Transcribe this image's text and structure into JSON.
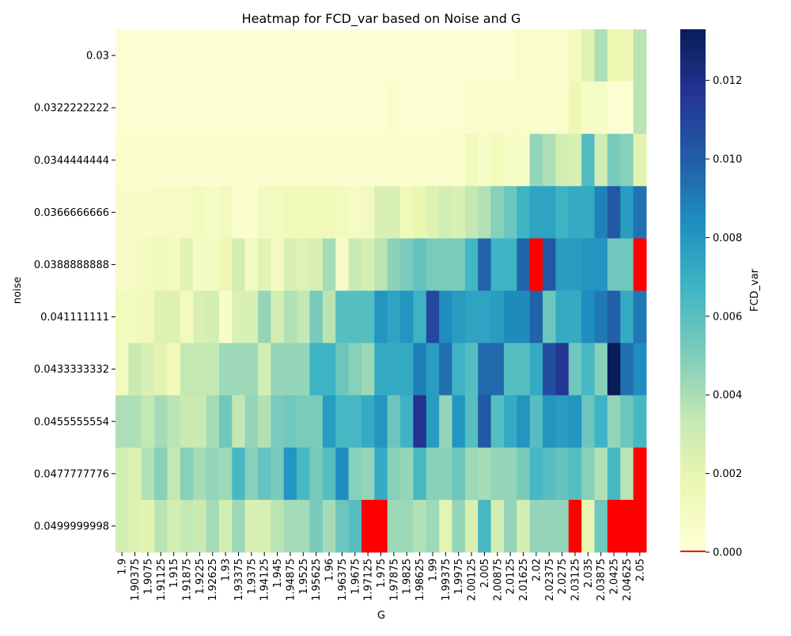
{
  "chart_data": {
    "type": "heatmap",
    "title": "Heatmap for FCD_var based on Noise and G",
    "xlabel": "G",
    "ylabel": "noise",
    "colorbar_label": "FCD_var",
    "colormap": "YlGnBu",
    "missing_color": "#ff0000",
    "value_range": [
      0,
      0.0133
    ],
    "colorbar_ticks": [
      "0.000",
      "0.002",
      "0.004",
      "0.006",
      "0.008",
      "0.010",
      "0.012"
    ],
    "x_categories": [
      "1.9",
      "1.90375",
      "1.9075",
      "1.91125",
      "1.915",
      "1.91875",
      "1.9225",
      "1.92625",
      "1.93",
      "1.93375",
      "1.9375",
      "1.94125",
      "1.945",
      "1.94875",
      "1.9525",
      "1.95625",
      "1.96",
      "1.96375",
      "1.9675",
      "1.97125",
      "1.975",
      "1.97875",
      "1.9825",
      "1.98625",
      "1.99",
      "1.99375",
      "1.9975",
      "2.00125",
      "2.005",
      "2.00875",
      "2.0125",
      "2.01625",
      "2.02",
      "2.02375",
      "2.0275",
      "2.03125",
      "2.035",
      "2.03875",
      "2.0425",
      "2.04625",
      "2.05"
    ],
    "y_categories": [
      "0.03",
      "0.0322222222",
      "0.0344444444",
      "0.0366666666",
      "0.0388888888",
      "0.041111111",
      "0.0433333332",
      "0.0455555554",
      "0.0477777776",
      "0.0499999998"
    ],
    "values": [
      [
        0.0003,
        0.0003,
        0.0003,
        0.0003,
        0.0003,
        0.0003,
        0.0003,
        0.0003,
        0.0003,
        0.0003,
        0.0003,
        0.0003,
        0.0003,
        0.0003,
        0.0003,
        0.0003,
        0.0003,
        0.0003,
        0.0003,
        0.0003,
        0.0003,
        0.0003,
        0.0003,
        0.0003,
        0.0003,
        0.0003,
        0.0003,
        0.0003,
        0.0003,
        0.0003,
        0.0003,
        0.0006,
        0.0006,
        0.0006,
        0.0006,
        0.0011,
        0.0022,
        0.0039,
        0.0016,
        0.0016,
        0.0036
      ],
      [
        0.0003,
        0.0003,
        0.0003,
        0.0003,
        0.0003,
        0.0003,
        0.0003,
        0.0003,
        0.0003,
        0.0003,
        0.0003,
        0.0003,
        0.0003,
        0.0003,
        0.0003,
        0.0003,
        0.0003,
        0.0003,
        0.0003,
        0.0003,
        0.0003,
        0.0006,
        0.0003,
        0.0003,
        0.0003,
        0.0003,
        0.0003,
        0.0006,
        0.0006,
        0.0006,
        0.0006,
        0.0006,
        0.0006,
        0.0006,
        0.0006,
        0.0016,
        0.0008,
        0.0008,
        0.0003,
        0.0003,
        0.0036
      ],
      [
        0.0005,
        0.0004,
        0.0004,
        0.0004,
        0.0004,
        0.0004,
        0.0004,
        0.0004,
        0.0004,
        0.0004,
        0.0004,
        0.0004,
        0.0004,
        0.0004,
        0.0004,
        0.0004,
        0.0004,
        0.0004,
        0.0004,
        0.0004,
        0.0004,
        0.0004,
        0.0004,
        0.0004,
        0.0004,
        0.0006,
        0.0006,
        0.0013,
        0.0008,
        0.0012,
        0.0008,
        0.0008,
        0.0045,
        0.0039,
        0.0028,
        0.0026,
        0.0062,
        0.0029,
        0.0052,
        0.0048,
        0.0021
      ],
      [
        0.0007,
        0.0007,
        0.0007,
        0.0009,
        0.0009,
        0.0009,
        0.0011,
        0.0008,
        0.0011,
        0.0005,
        0.0005,
        0.0011,
        0.0011,
        0.0014,
        0.0014,
        0.0014,
        0.0014,
        0.0011,
        0.0009,
        0.0011,
        0.0026,
        0.0026,
        0.0014,
        0.0018,
        0.0023,
        0.0028,
        0.0025,
        0.0034,
        0.0038,
        0.0048,
        0.0055,
        0.0068,
        0.0075,
        0.0075,
        0.0068,
        0.0072,
        0.0072,
        0.0088,
        0.0102,
        0.0078,
        0.0093
      ],
      [
        0.0007,
        0.0009,
        0.0011,
        0.0014,
        0.0011,
        0.0021,
        0.0009,
        0.0011,
        0.0016,
        0.0028,
        0.0011,
        0.0021,
        0.0011,
        0.0026,
        0.0023,
        0.0026,
        0.0041,
        0.0007,
        0.0032,
        0.0027,
        0.0036,
        0.0047,
        0.0051,
        0.0057,
        0.0051,
        0.0051,
        0.0051,
        0.0066,
        0.0098,
        0.0068,
        0.0068,
        0.0098,
        null,
        0.0103,
        0.0078,
        0.0078,
        0.0081,
        0.0081,
        0.0054,
        0.0054,
        null
      ],
      [
        0.0012,
        0.0012,
        0.0014,
        0.0024,
        0.0024,
        0.0012,
        0.0026,
        0.0028,
        0.0007,
        0.0026,
        0.0026,
        0.0045,
        0.0028,
        0.0038,
        0.0034,
        0.0052,
        0.0036,
        0.0061,
        0.0061,
        0.0061,
        0.0081,
        0.0075,
        0.0081,
        0.0068,
        0.0108,
        0.0084,
        0.0078,
        0.0075,
        0.0075,
        0.0078,
        0.0085,
        0.0085,
        0.0098,
        0.0055,
        0.0072,
        0.0072,
        0.0084,
        0.0091,
        0.0099,
        0.0072,
        0.0091
      ],
      [
        0.0011,
        0.0032,
        0.0026,
        0.0021,
        0.0014,
        0.0034,
        0.0034,
        0.0034,
        0.0043,
        0.0043,
        0.0043,
        0.0028,
        0.0045,
        0.0045,
        0.0045,
        0.0068,
        0.0068,
        0.0055,
        0.0048,
        0.0043,
        0.0072,
        0.0072,
        0.0072,
        0.0089,
        0.0078,
        0.0094,
        0.0068,
        0.0061,
        0.0096,
        0.0096,
        0.0061,
        0.0061,
        0.0072,
        0.0106,
        0.0116,
        0.0054,
        0.0065,
        0.0048,
        0.0133,
        0.0094,
        0.0084
      ],
      [
        0.0039,
        0.0039,
        0.0034,
        0.0041,
        0.0036,
        0.0032,
        0.0032,
        0.0041,
        0.0054,
        0.0034,
        0.0045,
        0.0038,
        0.0051,
        0.0054,
        0.0051,
        0.0051,
        0.0078,
        0.0065,
        0.0065,
        0.0072,
        0.0081,
        0.0055,
        0.0068,
        0.0118,
        0.0078,
        0.0045,
        0.0081,
        0.0061,
        0.0102,
        0.0061,
        0.0072,
        0.0081,
        0.0061,
        0.0081,
        0.0078,
        0.0081,
        0.0055,
        0.0068,
        0.0045,
        0.0055,
        0.0065
      ],
      [
        0.0028,
        0.0024,
        0.0038,
        0.0048,
        0.0034,
        0.0048,
        0.0041,
        0.0045,
        0.0043,
        0.0065,
        0.0048,
        0.0057,
        0.0052,
        0.0081,
        0.0065,
        0.0052,
        0.0061,
        0.0084,
        0.0048,
        0.0045,
        0.0072,
        0.0048,
        0.0045,
        0.0065,
        0.0048,
        0.0048,
        0.0055,
        0.0043,
        0.0041,
        0.0045,
        0.0045,
        0.0052,
        0.0065,
        0.0061,
        0.0057,
        0.0061,
        0.0048,
        0.0038,
        0.0065,
        0.0036,
        null
      ],
      [
        0.0028,
        0.0024,
        0.0021,
        0.0036,
        0.0028,
        0.0034,
        0.0032,
        0.0041,
        0.0028,
        0.0043,
        0.0026,
        0.0026,
        0.0036,
        0.0041,
        0.0041,
        0.0052,
        0.0041,
        0.0055,
        0.0061,
        null,
        null,
        0.0043,
        0.0043,
        0.0038,
        0.0043,
        0.0021,
        0.0045,
        0.0026,
        0.0065,
        0.0028,
        0.0045,
        0.0028,
        0.0045,
        0.0045,
        0.0045,
        null,
        0.0019,
        0.0054,
        null,
        null,
        null
      ]
    ]
  }
}
